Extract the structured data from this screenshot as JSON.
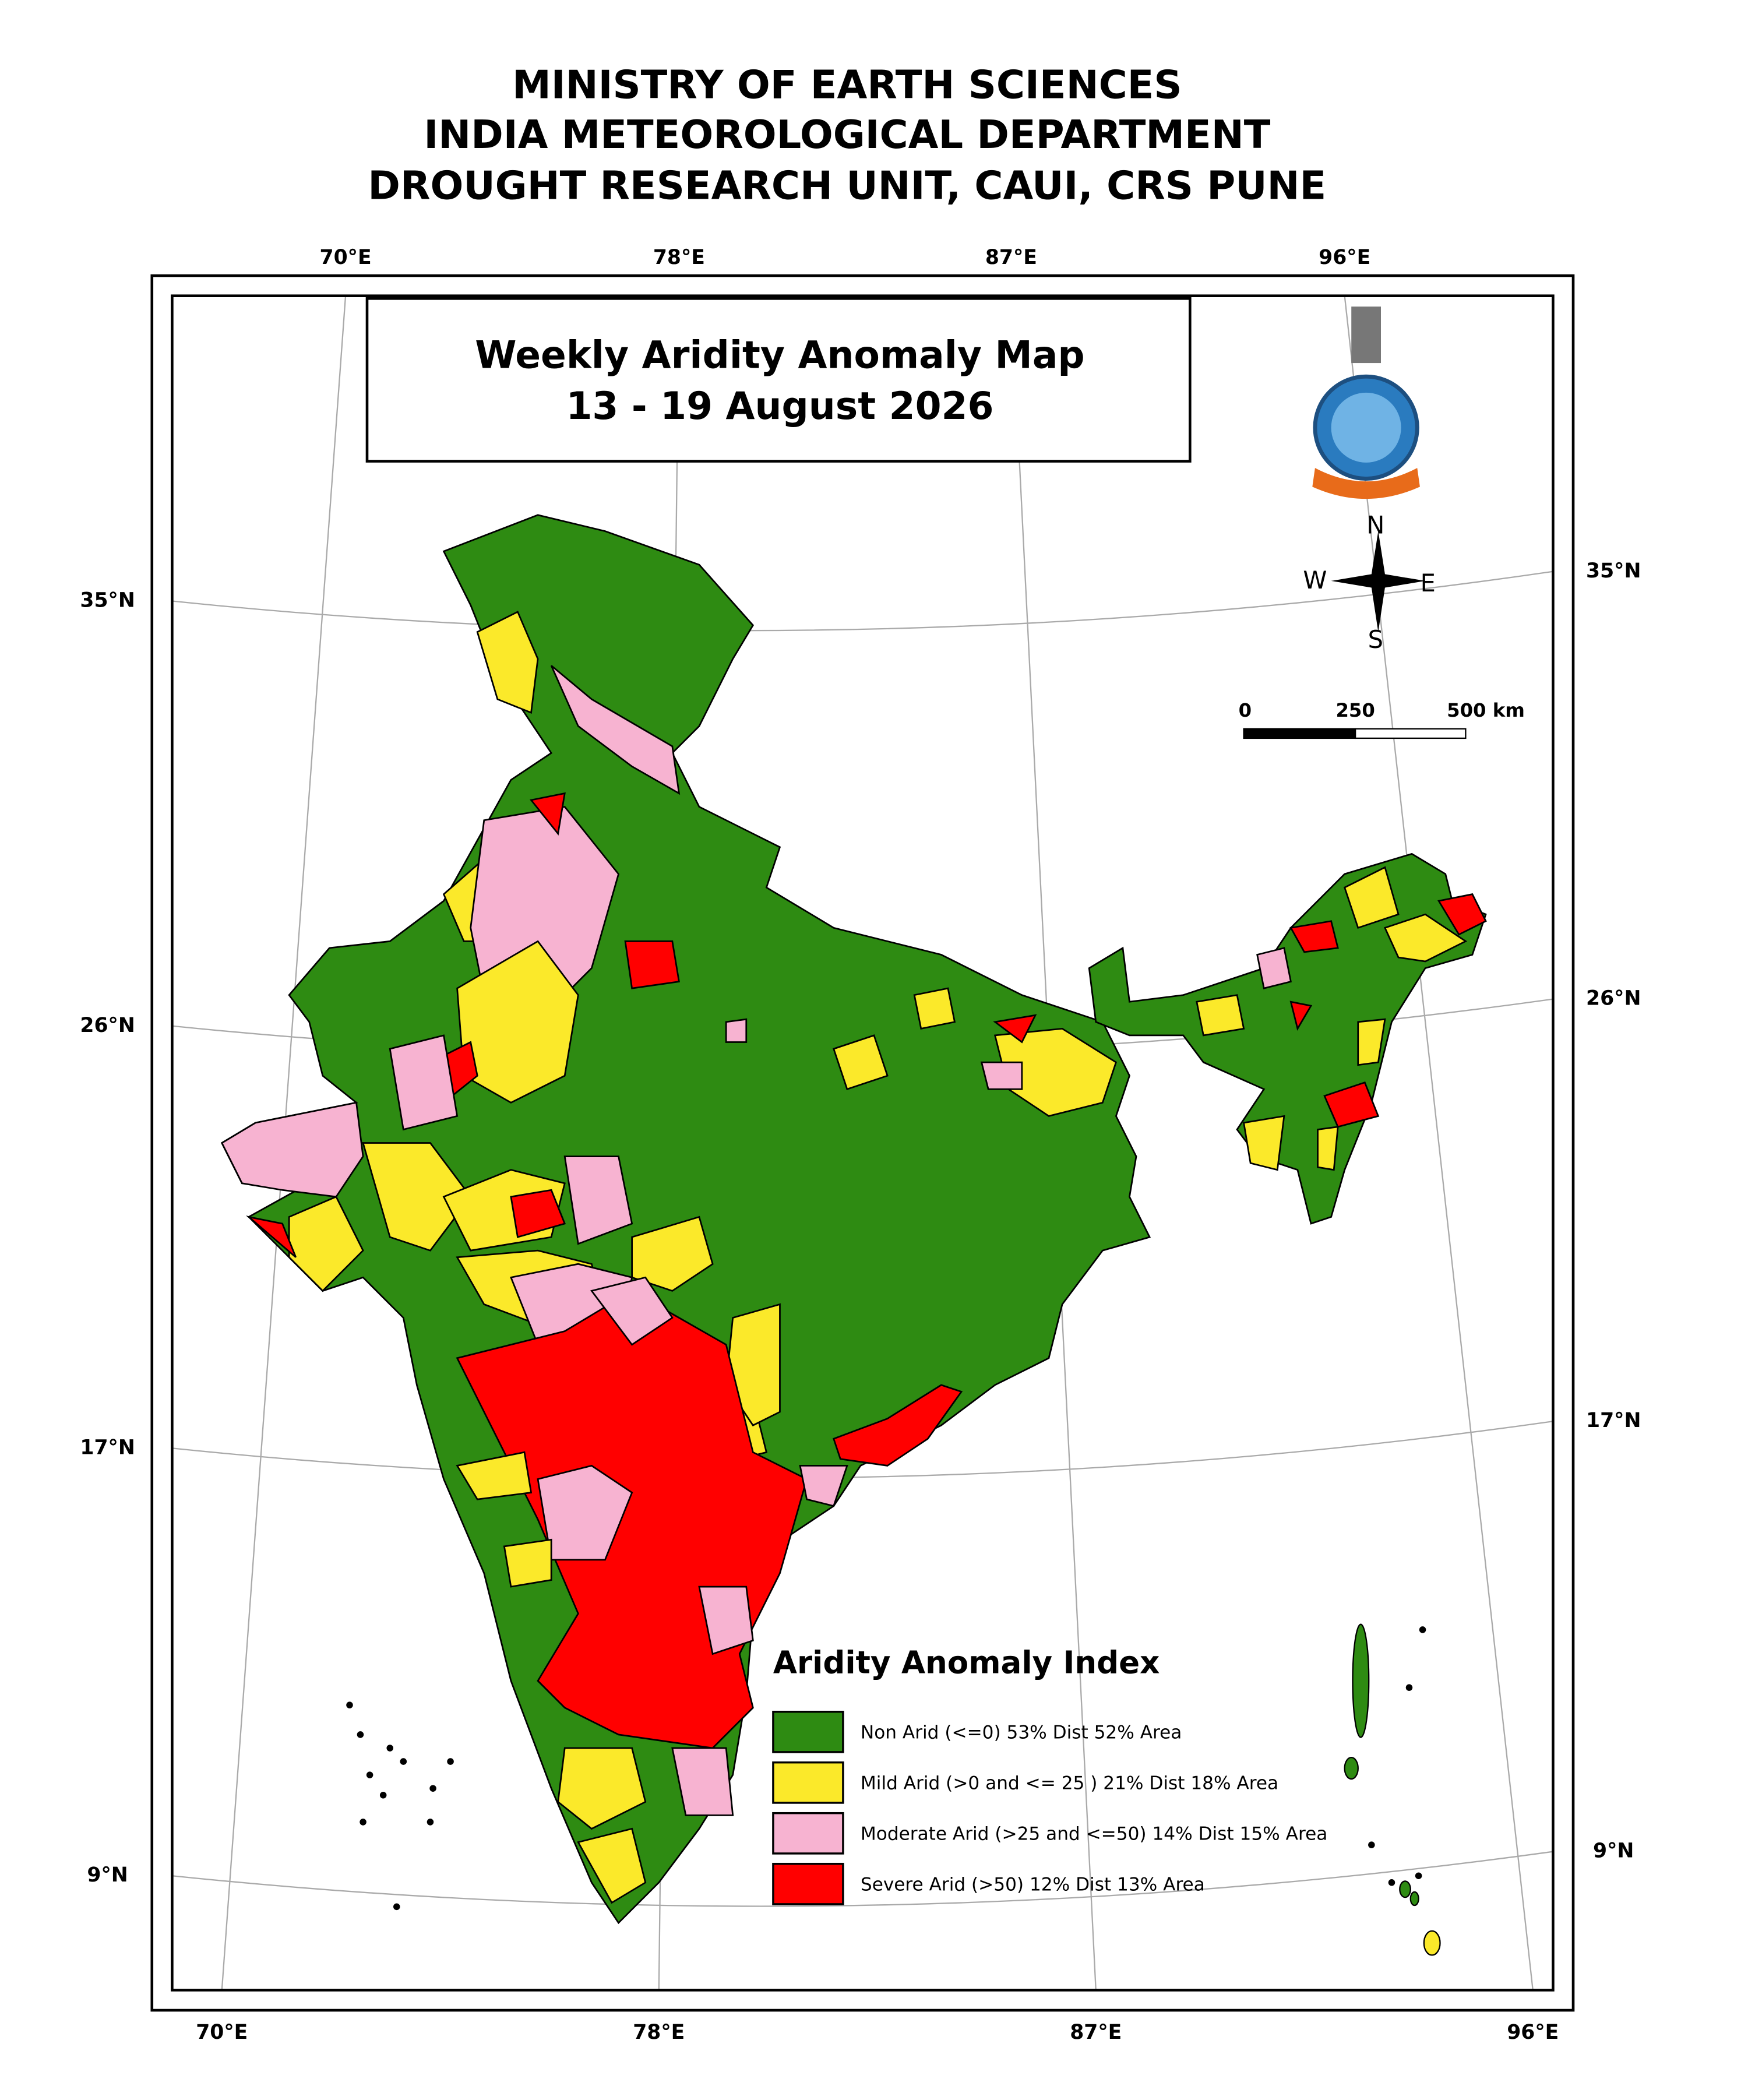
{
  "header": {
    "lines": [
      "MINISTRY OF EARTH SCIENCES",
      "INDIA METEOROLOGICAL DEPARTMENT",
      "DROUGHT RESEARCH UNIT, CAUI, CRS PUNE"
    ]
  },
  "map": {
    "title": "Weekly Aridity Anomaly Map",
    "period": "13 - 19  August 2026",
    "top_longitudes": [
      "70°E",
      "78°E",
      "87°E",
      "96°E"
    ],
    "bottom_longitudes": [
      "70°E",
      "78°E",
      "87°E",
      "96°E"
    ],
    "left_latitudes": [
      "35°N",
      "26°N",
      "17°N",
      "9°N"
    ],
    "right_latitudes": [
      "35°N",
      "26°N",
      "17°N",
      "9°N"
    ],
    "compass": [
      "N",
      "W",
      "E",
      "S"
    ],
    "scale_bar": [
      "0",
      "250",
      "500 km"
    ]
  },
  "legend": {
    "title": "Aridity Anomaly Index",
    "items": [
      {
        "label": "Non Arid (<=0) 53% Dist 52% Area",
        "color": "#2e8b12"
      },
      {
        "label": "Mild Arid (>0 and <= 25 ) 21% Dist  18% Area",
        "color": "#fbe92a"
      },
      {
        "label": "Moderate Arid (>25 and <=50) 14% Dist 15% Area",
        "color": "#f7b3d1"
      },
      {
        "label": "Severe Arid (>50) 12% Dist  13% Area",
        "color": "#ff0000"
      }
    ]
  }
}
